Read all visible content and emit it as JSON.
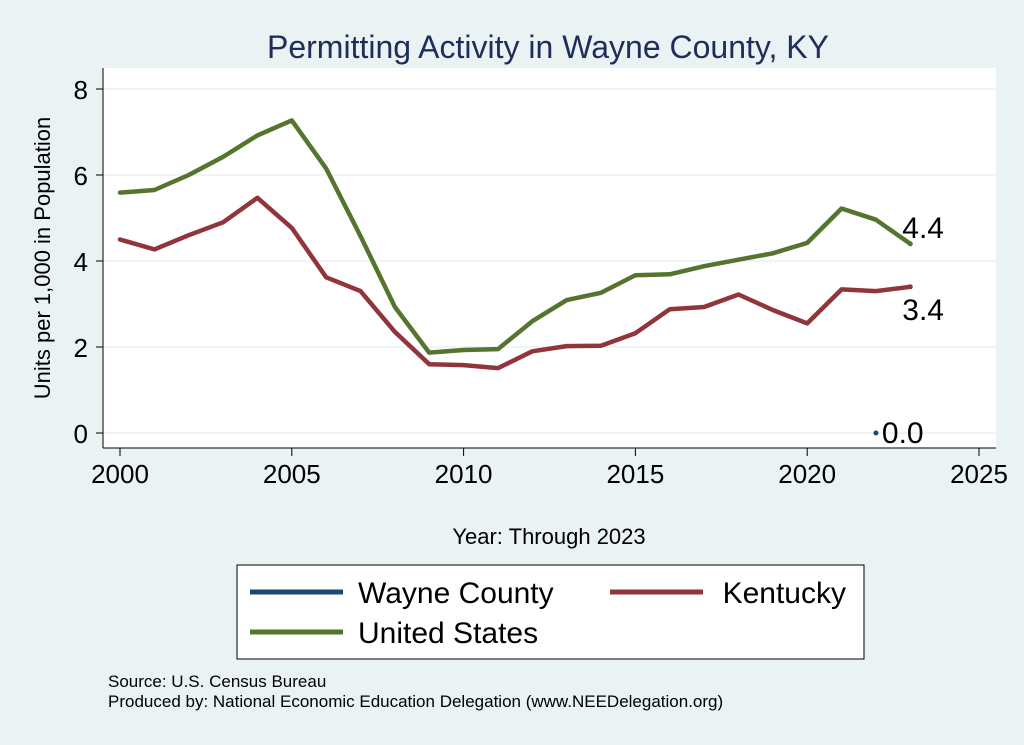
{
  "chart_data": {
    "type": "line",
    "title": "Permitting Activity in Wayne County, KY",
    "xlabel": "Year: Through 2023",
    "ylabel": "Units per 1,000 in Population",
    "xlim": [
      2000,
      2025
    ],
    "ylim": [
      0,
      8
    ],
    "x_ticks": [
      "2000",
      "2005",
      "2010",
      "2015",
      "2020",
      "2025"
    ],
    "y_ticks": [
      "0",
      "2",
      "4",
      "6",
      "8"
    ],
    "grid": true,
    "legend_position": "bottom",
    "series": [
      {
        "name": "Wayne County",
        "color": "#1a476f",
        "points": [
          [
            2022,
            0.0
          ]
        ],
        "end_label": "0.0"
      },
      {
        "name": "Kentucky",
        "color": "#90353b",
        "points": [
          [
            2000,
            4.5
          ],
          [
            2001,
            4.27
          ],
          [
            2002,
            4.6
          ],
          [
            2003,
            4.9
          ],
          [
            2004,
            5.47
          ],
          [
            2005,
            4.77
          ],
          [
            2006,
            3.62
          ],
          [
            2007,
            3.3
          ],
          [
            2008,
            2.35
          ],
          [
            2009,
            1.6
          ],
          [
            2010,
            1.58
          ],
          [
            2011,
            1.51
          ],
          [
            2012,
            1.9
          ],
          [
            2013,
            2.02
          ],
          [
            2014,
            2.03
          ],
          [
            2015,
            2.32
          ],
          [
            2016,
            2.88
          ],
          [
            2017,
            2.93
          ],
          [
            2018,
            3.22
          ],
          [
            2019,
            2.86
          ],
          [
            2020,
            2.55
          ],
          [
            2021,
            3.34
          ],
          [
            2022,
            3.3
          ],
          [
            2023,
            3.4
          ]
        ],
        "end_label": "3.4"
      },
      {
        "name": "United States",
        "color": "#55752f",
        "points": [
          [
            2000,
            5.59
          ],
          [
            2001,
            5.65
          ],
          [
            2002,
            6.0
          ],
          [
            2003,
            6.42
          ],
          [
            2004,
            6.92
          ],
          [
            2005,
            7.27
          ],
          [
            2006,
            6.15
          ],
          [
            2007,
            4.58
          ],
          [
            2008,
            2.93
          ],
          [
            2009,
            1.87
          ],
          [
            2010,
            1.93
          ],
          [
            2011,
            1.95
          ],
          [
            2012,
            2.6
          ],
          [
            2013,
            3.09
          ],
          [
            2014,
            3.26
          ],
          [
            2015,
            3.67
          ],
          [
            2016,
            3.69
          ],
          [
            2017,
            3.88
          ],
          [
            2018,
            4.03
          ],
          [
            2019,
            4.18
          ],
          [
            2020,
            4.42
          ],
          [
            2021,
            5.22
          ],
          [
            2022,
            4.96
          ],
          [
            2023,
            4.4
          ]
        ],
        "end_label": "4.4"
      }
    ]
  },
  "legend": {
    "items": [
      {
        "label": "Wayne County",
        "color": "#1a476f"
      },
      {
        "label": "Kentucky",
        "color": "#90353b"
      },
      {
        "label": "United States",
        "color": "#55752f"
      }
    ]
  },
  "footer": {
    "source": "Source: U.S. Census Bureau",
    "produced_by": "Produced by: National Economic Education Delegation (www.NEEDelegation.org)"
  }
}
